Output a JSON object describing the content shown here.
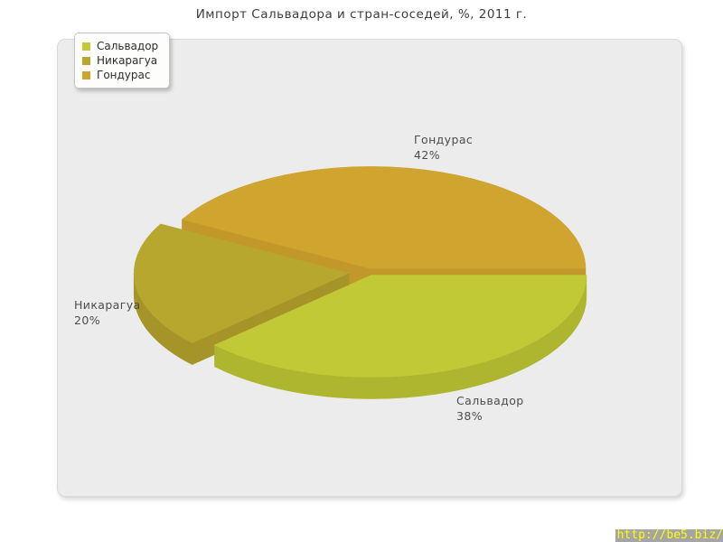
{
  "title": "Импорт Сальвадора и стран-соседей, %, 2011 г.",
  "watermark": "http://be5.biz/",
  "legend": {
    "items": [
      "Сальвадор",
      "Никарагуа",
      "Гондурас"
    ]
  },
  "chart_data": {
    "type": "pie",
    "style": "3d",
    "title": "Импорт Сальвадора и стран-соседей, %, 2011 г.",
    "unit": "%",
    "start_angle_deg": 0,
    "direction": "clockwise",
    "legend_position": "top-left",
    "background": "#ececec",
    "slices": [
      {
        "name": "Сальвадор",
        "value": 38,
        "color": "#c1c936",
        "side_color": "#adb62e",
        "pulled_out": false
      },
      {
        "name": "Никарагуа",
        "value": 20,
        "color": "#b7a72f",
        "side_color": "#a59428",
        "pulled_out": true
      },
      {
        "name": "Гондурас",
        "value": 42,
        "color": "#cfa42f",
        "side_color": "#c2982a",
        "pulled_out": false
      }
    ]
  }
}
